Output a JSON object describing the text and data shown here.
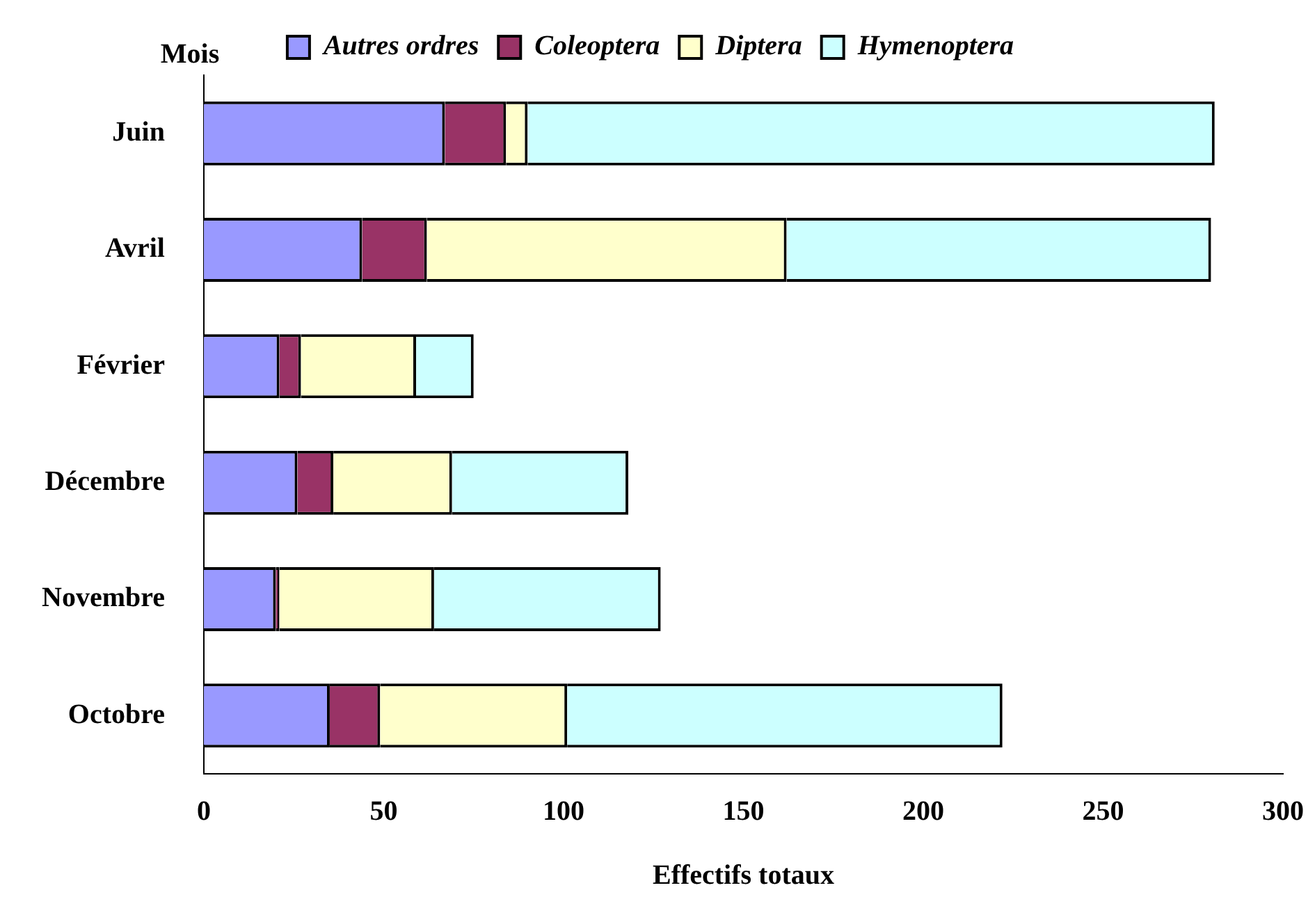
{
  "chart_data": {
    "type": "bar",
    "orientation": "horizontal",
    "stacked": true,
    "xlabel": "Effectifs totaux",
    "ylabel": "Mois",
    "categories": [
      "Juin",
      "Avril",
      "Février",
      "Décembre",
      "Novembre",
      "Octobre"
    ],
    "series": [
      {
        "name": "Autres ordres",
        "color": "#9999ff",
        "values": [
          67,
          44,
          21,
          26,
          20,
          35
        ]
      },
      {
        "name": "Coleoptera",
        "color": "#993366",
        "values": [
          17,
          18,
          6,
          10,
          1,
          14
        ]
      },
      {
        "name": "Diptera",
        "color": "#ffffcc",
        "values": [
          6,
          100,
          32,
          33,
          43,
          52
        ]
      },
      {
        "name": "Hymenoptera",
        "color": "#ccffff",
        "values": [
          191,
          118,
          16,
          49,
          63,
          121
        ]
      }
    ],
    "xlim": [
      0,
      300
    ],
    "xticks": [
      0,
      50,
      100,
      150,
      200,
      250,
      300
    ],
    "grid": false,
    "legend": "top"
  }
}
